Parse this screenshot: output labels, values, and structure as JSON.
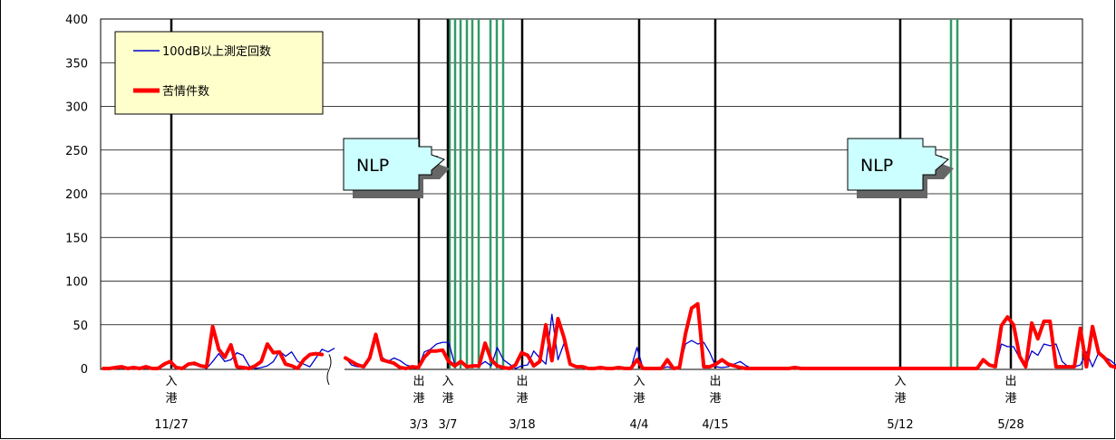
{
  "chart_data": {
    "type": "line",
    "ylim": [
      0,
      400
    ],
    "yticks": [
      "0",
      "50",
      "100",
      "150",
      "200",
      "250",
      "300",
      "350",
      "400"
    ],
    "grid": true,
    "legend": {
      "placement": "top-left",
      "entries": [
        {
          "label": "100dB以上測定回数",
          "color": "#0000cc"
        },
        {
          "label": "苦情件数",
          "color": "#ff0000"
        }
      ]
    },
    "series": [
      {
        "name": "100dB以上測定回数",
        "color": "#0000cc",
        "segments": [
          [
            0,
            0,
            1,
            2,
            0,
            1,
            0,
            2,
            0,
            0,
            3,
            8,
            2,
            0,
            6,
            4,
            3,
            0,
            8,
            17,
            8,
            10,
            18,
            15,
            3,
            0,
            1,
            3,
            8,
            20,
            14,
            19,
            8,
            5,
            2,
            12,
            22,
            19,
            23
          ],
          [
            12,
            4,
            2,
            2,
            15,
            35,
            13,
            8,
            12,
            9,
            4,
            2,
            1,
            19,
            22,
            28,
            30,
            30,
            5,
            6,
            2,
            3,
            3,
            8,
            3,
            24,
            10,
            5,
            0,
            3,
            4,
            20,
            12,
            5,
            62,
            10,
            29,
            5,
            2,
            2,
            0,
            0,
            1,
            0,
            0,
            1,
            0,
            0,
            24,
            0,
            0,
            0,
            0,
            2,
            0,
            1,
            28,
            32,
            28,
            30,
            18,
            2,
            1,
            2,
            5,
            8,
            3,
            0,
            0,
            0,
            0,
            0,
            0,
            0,
            1,
            0,
            0,
            0,
            0,
            0,
            0,
            0,
            0,
            0,
            0,
            0,
            0,
            0,
            0,
            0,
            0,
            0,
            0,
            0,
            0,
            0,
            0,
            0,
            0,
            0,
            0,
            0,
            0,
            0,
            0,
            8,
            4,
            2,
            28,
            25,
            25,
            12,
            2,
            20,
            15,
            28,
            26,
            28,
            8,
            2,
            2,
            4,
            19,
            2,
            18,
            13,
            9,
            3,
            1,
            3,
            2,
            2,
            1,
            0,
            0,
            0
          ]
        ]
      },
      {
        "name": "苦情件数",
        "color": "#ff0000",
        "segments": [
          [
            0,
            0,
            1,
            2,
            0,
            1,
            0,
            2,
            0,
            0,
            5,
            8,
            1,
            0,
            5,
            6,
            3,
            2,
            48,
            22,
            13,
            27,
            2,
            1,
            0,
            3,
            8,
            28,
            18,
            19,
            5,
            3,
            0,
            10,
            16,
            17,
            16
          ],
          [
            12,
            8,
            4,
            2,
            12,
            39,
            10,
            8,
            6,
            1,
            0,
            2,
            1,
            13,
            20,
            20,
            21,
            8,
            3,
            8,
            2,
            3,
            3,
            29,
            10,
            3,
            1,
            0,
            4,
            18,
            15,
            3,
            8,
            50,
            9,
            57,
            35,
            5,
            2,
            2,
            0,
            0,
            1,
            0,
            0,
            1,
            0,
            0,
            10,
            0,
            0,
            0,
            0,
            10,
            0,
            1,
            40,
            69,
            74,
            2,
            2,
            5,
            10,
            5,
            3,
            1,
            0,
            0,
            0,
            0,
            0,
            0,
            0,
            0,
            1,
            0,
            0,
            0,
            0,
            0,
            0,
            0,
            0,
            0,
            0,
            0,
            0,
            0,
            0,
            0,
            0,
            0,
            0,
            0,
            0,
            0,
            0,
            0,
            0,
            0,
            0,
            0,
            0,
            0,
            0,
            10,
            4,
            2,
            49,
            59,
            50,
            14,
            2,
            52,
            34,
            54,
            54,
            2,
            2,
            2,
            2,
            46,
            2,
            48,
            18,
            12,
            3,
            1,
            4,
            2,
            2,
            1,
            0,
            0,
            0
          ]
        ]
      }
    ],
    "event_lines": [
      {
        "label": "入港",
        "date": "11/27"
      },
      {
        "label": "出港",
        "date": "3/3"
      },
      {
        "label": "入港",
        "date": "3/7"
      },
      {
        "label": "出港",
        "date": "3/18"
      },
      {
        "label": "入港",
        "date": "4/4"
      },
      {
        "label": "出港",
        "date": "4/15"
      },
      {
        "label": "入港",
        "date": "5/12"
      },
      {
        "label": "出港",
        "date": "5/28"
      }
    ],
    "nlp_labels": [
      "NLP",
      "NLP"
    ]
  }
}
